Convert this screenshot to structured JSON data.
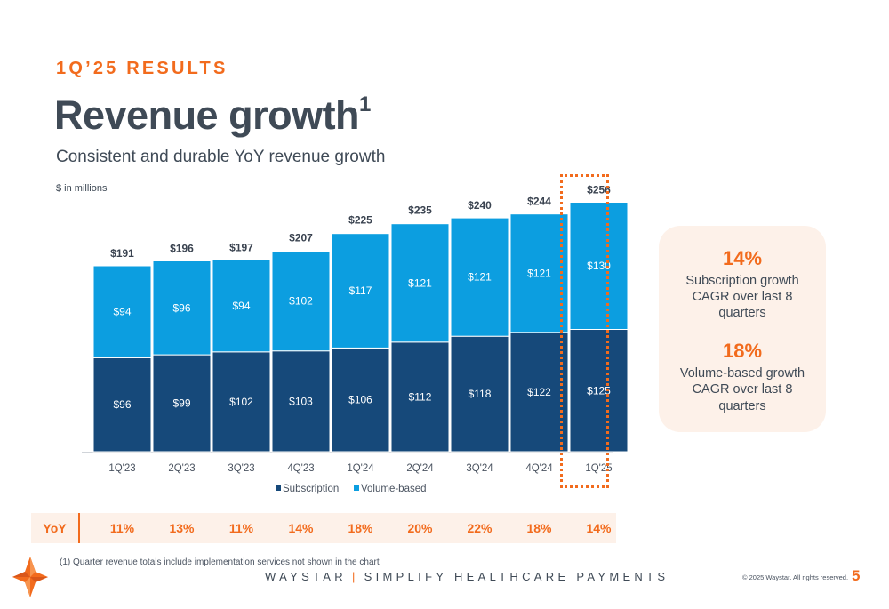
{
  "header": {
    "eyebrow": "1Q’25 RESULTS",
    "title": "Revenue growth",
    "title_superscript": "1",
    "subtitle": "Consistent and durable YoY revenue growth",
    "units": "$ in millions"
  },
  "chart_data": {
    "type": "bar",
    "stacked": true,
    "categories": [
      "1Q'23",
      "2Q'23",
      "3Q'23",
      "4Q'23",
      "1Q'24",
      "2Q'24",
      "3Q'24",
      "4Q'24",
      "1Q'25"
    ],
    "series": [
      {
        "name": "Subscription",
        "color": "#16497a",
        "values": [
          96,
          99,
          102,
          103,
          106,
          112,
          118,
          122,
          125
        ],
        "labels": [
          "$96",
          "$99",
          "$102",
          "$103",
          "$106",
          "$112",
          "$118",
          "$122",
          "$125"
        ]
      },
      {
        "name": "Volume-based",
        "color": "#0c9ee0",
        "values": [
          94,
          96,
          94,
          102,
          117,
          121,
          121,
          121,
          130
        ],
        "labels": [
          "$94",
          "$96",
          "$94",
          "$102",
          "$117",
          "$121",
          "$121",
          "$121",
          "$130"
        ]
      }
    ],
    "totals": [
      191,
      196,
      197,
      207,
      225,
      235,
      240,
      244,
      256
    ],
    "total_labels": [
      "$191",
      "$196",
      "$197",
      "$207",
      "$225",
      "$235",
      "$240",
      "$244",
      "$256"
    ],
    "ylim": [
      0,
      280
    ],
    "grid": false,
    "legend": "bottom-center",
    "highlighted_category": "1Q'25"
  },
  "yoy": {
    "label": "YoY",
    "values": [
      "11%",
      "13%",
      "11%",
      "14%",
      "18%",
      "20%",
      "22%",
      "18%",
      "14%"
    ]
  },
  "callout": {
    "stat1_value": "14%",
    "stat1_desc_1": "Subscription growth",
    "stat1_desc_2": "CAGR over last 8",
    "stat1_desc_3": "quarters",
    "stat2_value": "18%",
    "stat2_desc_1": "Volume-based growth",
    "stat2_desc_2": "CAGR over last 8",
    "stat2_desc_3": "quarters"
  },
  "footer": {
    "footnote": "(1)   Quarter revenue totals include implementation services not shown in the chart",
    "brand": "WAYSTAR",
    "separator": "|",
    "tagline": "SIMPLIFY HEALTHCARE PAYMENTS",
    "copyright": "© 2025 Waystar. All rights reserved.",
    "page_number": "5"
  },
  "colors": {
    "accent": "#f26b1d",
    "subscription": "#16497a",
    "volume_based": "#0c9ee0",
    "panel_bg": "#fdf1e9"
  }
}
